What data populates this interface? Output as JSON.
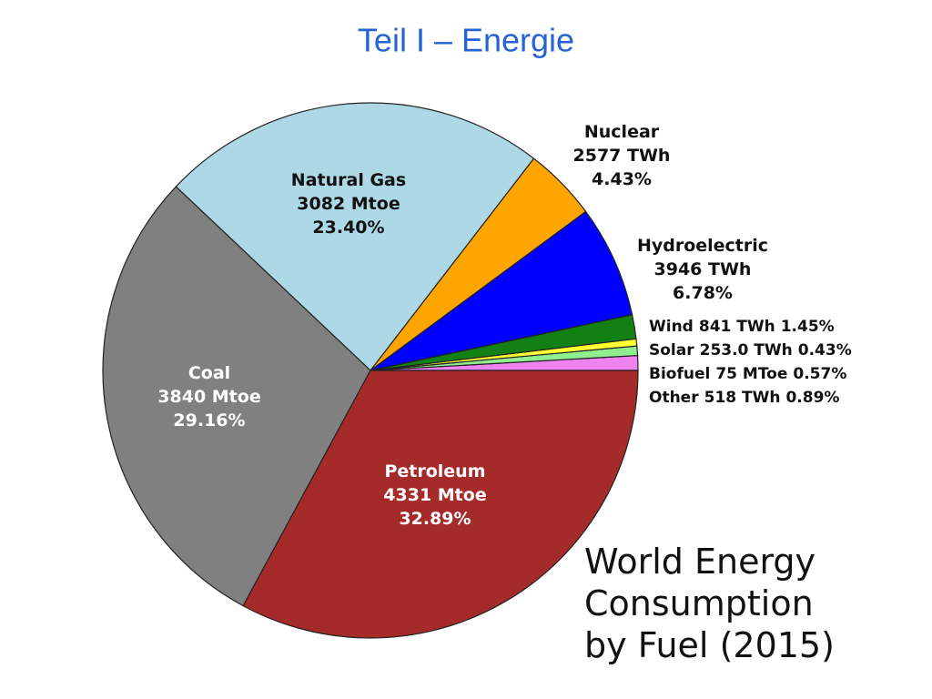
{
  "header": {
    "title": "Teil I – Energie"
  },
  "chart_data": {
    "type": "pie",
    "title": [
      "World Energy",
      "Consumption",
      "by Fuel (2015)"
    ],
    "categories": [
      "Other",
      "Biofuel",
      "Solar",
      "Wind",
      "Hydroelectric",
      "Nuclear",
      "Natural Gas",
      "Coal",
      "Petroleum"
    ],
    "amounts": [
      "518 TWh",
      "75 MToe",
      "253.0 TWh",
      "841 TWh",
      "3946 TWh",
      "2577 TWh",
      "3082 Mtoe",
      "3840 Mtoe",
      "4331 Mtoe"
    ],
    "values": [
      0.89,
      0.57,
      0.43,
      1.45,
      6.78,
      4.43,
      23.4,
      29.16,
      32.89
    ],
    "value_labels": [
      "0.89%",
      "0.57%",
      "0.43%",
      "1.45%",
      "6.78%",
      "4.43%",
      "23.40%",
      "29.16%",
      "32.89%"
    ],
    "colors": [
      "#ee82ee",
      "#90ee90",
      "#ffff33",
      "#138013",
      "#0000ff",
      "#ffa500",
      "#add8e6",
      "#808080",
      "#a52a2a"
    ],
    "start_angle": 0,
    "direction": "counterclockwise"
  }
}
